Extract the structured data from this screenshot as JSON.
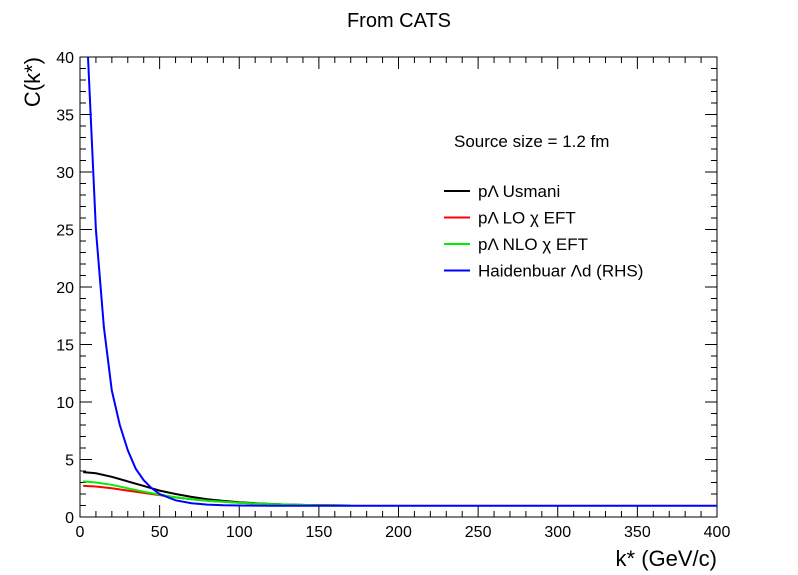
{
  "chart_data": {
    "type": "line",
    "title": "From CATS",
    "xlabel": "k* (GeV/c)",
    "ylabel": "C(k*)",
    "xlim": [
      0,
      400
    ],
    "ylim": [
      0,
      40
    ],
    "x_ticks": [
      "0",
      "50",
      "100",
      "150",
      "200",
      "250",
      "300",
      "350",
      "400"
    ],
    "y_ticks": [
      "0",
      "5",
      "10",
      "15",
      "20",
      "25",
      "30",
      "35",
      "40"
    ],
    "annotation": "Source size = 1.2 fm",
    "legend_position": "top-right",
    "grid": false,
    "series": [
      {
        "name": "pΛ Usmani",
        "color": "#000000",
        "x": [
          2,
          10,
          20,
          30,
          40,
          50,
          60,
          70,
          80,
          90,
          100,
          110,
          120,
          130,
          150,
          170
        ],
        "y": [
          3.9,
          3.8,
          3.5,
          3.1,
          2.7,
          2.3,
          2.0,
          1.75,
          1.55,
          1.4,
          1.28,
          1.2,
          1.13,
          1.08,
          1.03,
          1.0
        ]
      },
      {
        "name": "pΛ LO χ EFT",
        "color": "#ff0000",
        "x": [
          2,
          10,
          20,
          30,
          40,
          50,
          60,
          70,
          80,
          90,
          100,
          110,
          120,
          130,
          150,
          170
        ],
        "y": [
          2.7,
          2.65,
          2.5,
          2.3,
          2.1,
          1.9,
          1.7,
          1.55,
          1.42,
          1.32,
          1.24,
          1.17,
          1.12,
          1.08,
          1.03,
          1.0
        ]
      },
      {
        "name": "pΛ NLO χ EFT",
        "color": "#00ee00",
        "x": [
          2,
          10,
          20,
          30,
          40,
          50,
          60,
          70,
          80,
          90,
          100,
          110,
          120,
          130,
          150,
          170
        ],
        "y": [
          3.1,
          3.0,
          2.8,
          2.5,
          2.2,
          1.95,
          1.72,
          1.55,
          1.42,
          1.32,
          1.24,
          1.17,
          1.12,
          1.08,
          1.03,
          1.0
        ]
      },
      {
        "name": "Haidenbuar Λd (RHS)",
        "color": "#0000ff",
        "x": [
          5,
          10,
          15,
          20,
          25,
          30,
          35,
          40,
          45,
          50,
          60,
          70,
          80,
          90,
          100,
          120,
          150,
          200,
          250,
          300,
          350,
          400
        ],
        "y": [
          40,
          25,
          16.5,
          11,
          8,
          5.8,
          4.2,
          3.2,
          2.5,
          2.0,
          1.45,
          1.2,
          1.08,
          1.02,
          1.0,
          0.98,
          0.98,
          0.98,
          0.98,
          0.98,
          0.98,
          0.98
        ]
      }
    ]
  }
}
